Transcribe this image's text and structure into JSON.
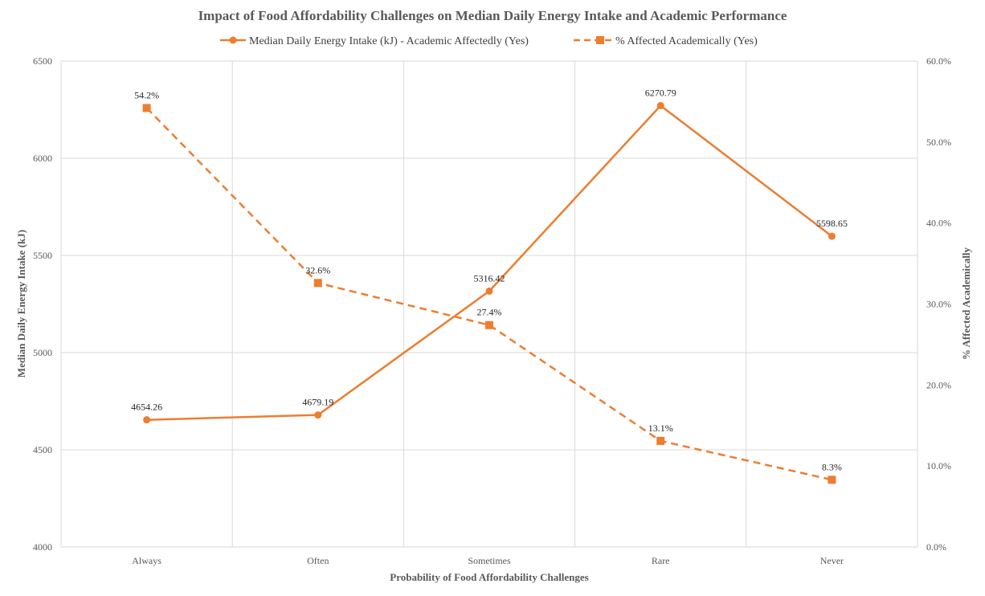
{
  "chart_data": {
    "type": "line",
    "title": "Impact of Food Affordability Challenges on Median Daily Energy Intake and Academic Performance",
    "xlabel": "Probability of Food Affordability Challenges",
    "ylabel": "Median Daily Energy Intake (kJ)",
    "y2label": "% Affected Academically",
    "categories": [
      "Always",
      "Often",
      "Sometimes",
      "Rare",
      "Never"
    ],
    "ylim": [
      4000,
      6500
    ],
    "yticks": [
      "4000",
      "4500",
      "5000",
      "5500",
      "6000",
      "6500"
    ],
    "y2lim": [
      0,
      60
    ],
    "y2ticks": [
      "0.0%",
      "10.0%",
      "20.0%",
      "30.0%",
      "40.0%",
      "50.0%",
      "60.0%"
    ],
    "grid": true,
    "legend_position": "top",
    "series": [
      {
        "name": "Median Daily Energy Intake (kJ) - Academic Affectedly (Yes)",
        "axis": "left",
        "style": "solid",
        "marker": "circle",
        "color": "#ED7D31",
        "values": [
          4654.26,
          4679.19,
          5316.42,
          6270.79,
          5598.65
        ],
        "labels": [
          "4654.26",
          "4679.19",
          "5316.42",
          "6270.79",
          "5598.65"
        ]
      },
      {
        "name": "% Affected Academically (Yes)",
        "axis": "right",
        "style": "dashed",
        "marker": "square",
        "color": "#ED7D31",
        "values": [
          54.2,
          32.6,
          27.4,
          13.1,
          8.3
        ],
        "labels": [
          "54.2%",
          "32.6%",
          "27.4%",
          "13.1%",
          "8.3%"
        ]
      }
    ]
  }
}
